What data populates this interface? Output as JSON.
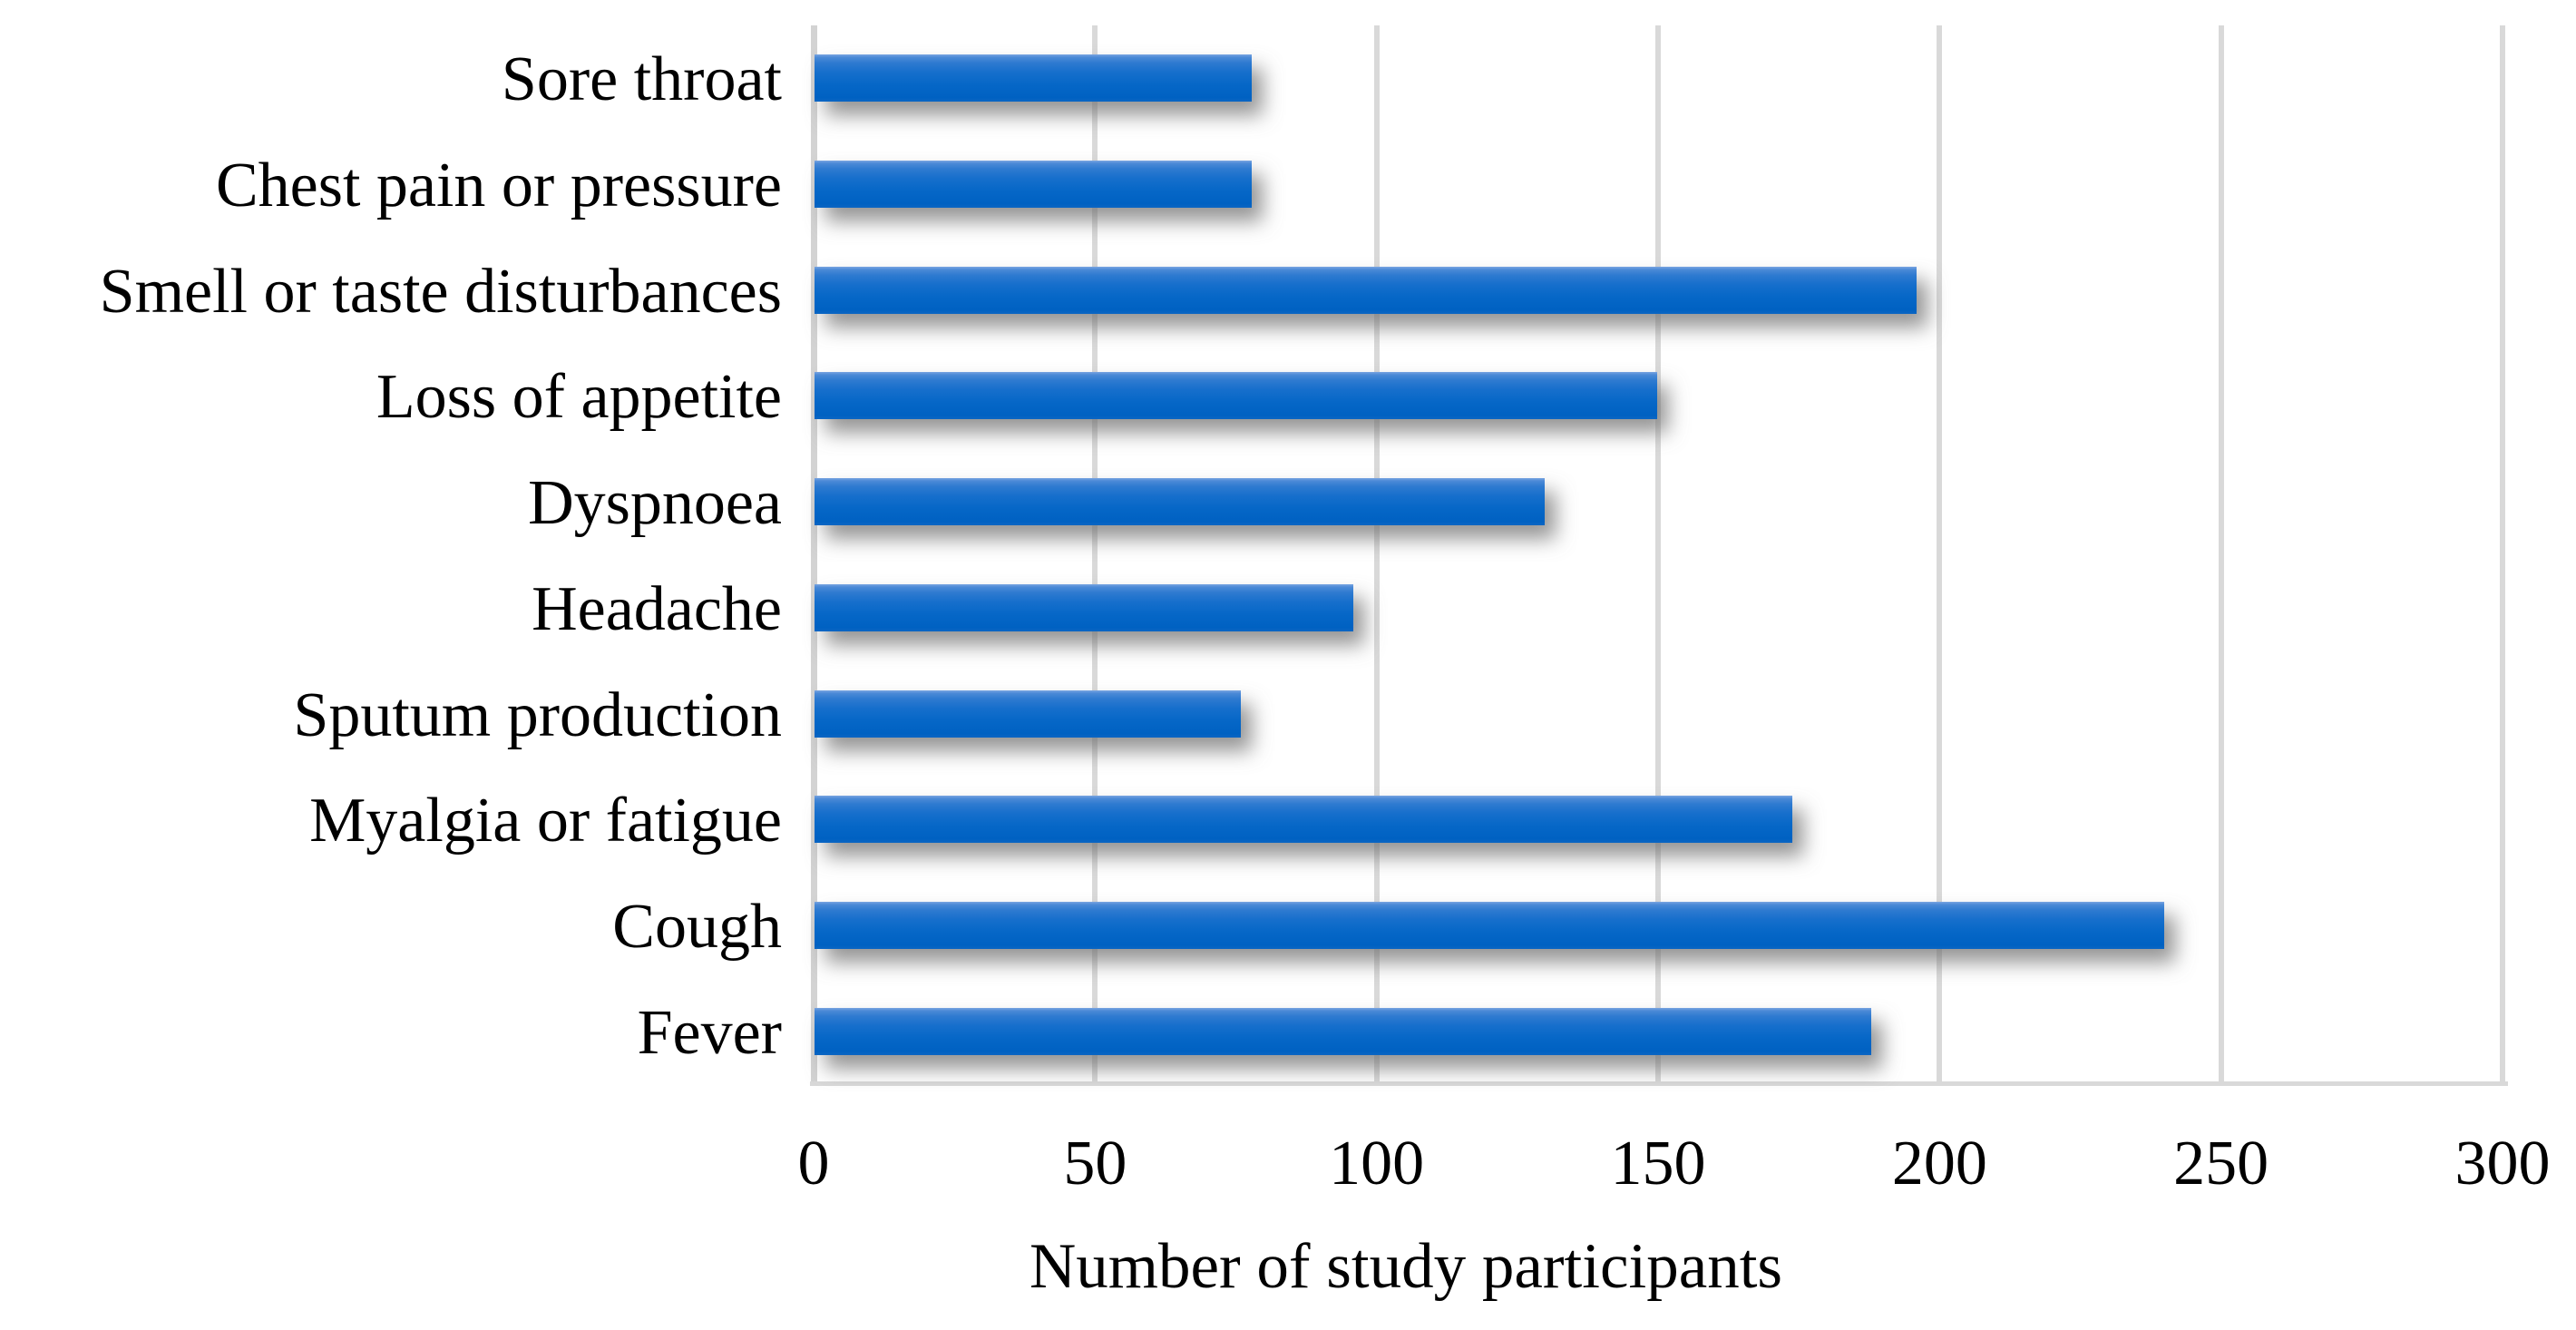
{
  "chart_data": {
    "type": "bar",
    "orientation": "horizontal",
    "title": "",
    "xlabel": "Number of study participants",
    "categories": [
      "Sore throat",
      "Chest pain or pressure",
      "Smell or taste disturbances",
      "Loss of appetite",
      "Dyspnoea",
      "Headache",
      "Sputum production",
      "Myalgia or fatigue",
      "Cough",
      "Fever"
    ],
    "values": [
      78,
      78,
      196,
      150,
      130,
      96,
      76,
      174,
      240,
      188
    ],
    "xlim": [
      0,
      300
    ],
    "xticks": [
      0,
      50,
      100,
      150,
      200,
      250,
      300
    ],
    "grid": "vertical-gridlines-on",
    "legend": "none",
    "bar_color": "#0b68c8",
    "bar_color_top": "#4c8ad7",
    "gridline_color": "#d9d9d9",
    "text_color": "#000000",
    "background_color": "#ffffff"
  }
}
